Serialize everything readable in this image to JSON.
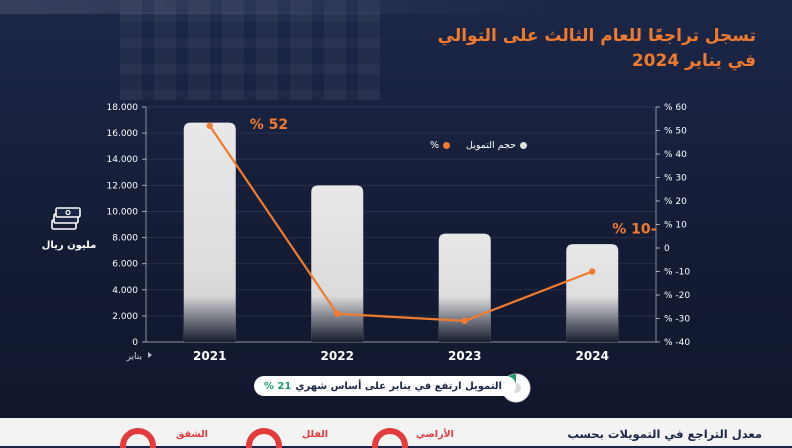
{
  "header": {
    "subtitle_line1": "تسجل تراجعًا للعام الثالث على التوالي",
    "subtitle_line2": "في يناير 2024"
  },
  "chart_data": {
    "type": "bar",
    "categories": [
      "2021",
      "2022",
      "2023",
      "2024"
    ],
    "series": [
      {
        "name": "حجم التمويل",
        "kind": "bar",
        "color": "#e0e0e0",
        "values": [
          16800,
          12000,
          8300,
          7500
        ]
      },
      {
        "name": "%",
        "kind": "line",
        "color": "#f07b2e",
        "values": [
          52,
          -28,
          -31,
          -10
        ]
      }
    ],
    "left_axis_ticks": [
      "18.000",
      "16.000",
      "14.000",
      "12.000",
      "10.000",
      "8.000",
      "6.000",
      "4.000",
      "2.000",
      "0"
    ],
    "right_axis_ticks": [
      "% 60",
      "% 50",
      "% 40",
      "% 30",
      "% 20",
      "% 10",
      "0",
      "% -10",
      "% -20",
      "% -30",
      "% -40"
    ],
    "ylim_left": [
      0,
      18000
    ],
    "ylim_right": [
      -40,
      60
    ],
    "annotations": [
      {
        "text": "% 52",
        "category": "2021"
      },
      {
        "text": "% 10-",
        "category": "2024"
      }
    ],
    "x_axis_note": "يناير",
    "unit_label": "مليون ريال"
  },
  "legend": {
    "volume_label": "حجم التمويل",
    "percent_label": "%"
  },
  "note": {
    "text": "التمويل ارتفع في يناير على أساس شهري",
    "value": "21 %"
  },
  "bottom": {
    "title": "معدل التراجع في التمويلات بحسب",
    "categories": [
      {
        "label": "الأراضي"
      },
      {
        "label": "الفلل"
      },
      {
        "label": "الشقق"
      }
    ]
  },
  "colors": {
    "background": "#1c2748",
    "accent": "#f07b2e",
    "bar": "#e0e0e0",
    "highlight": "#1c9c6e",
    "negative": "#e23b3b"
  },
  "icons": {
    "unit_icon": "money-stack-icon",
    "note_icon": "pie-icon"
  }
}
